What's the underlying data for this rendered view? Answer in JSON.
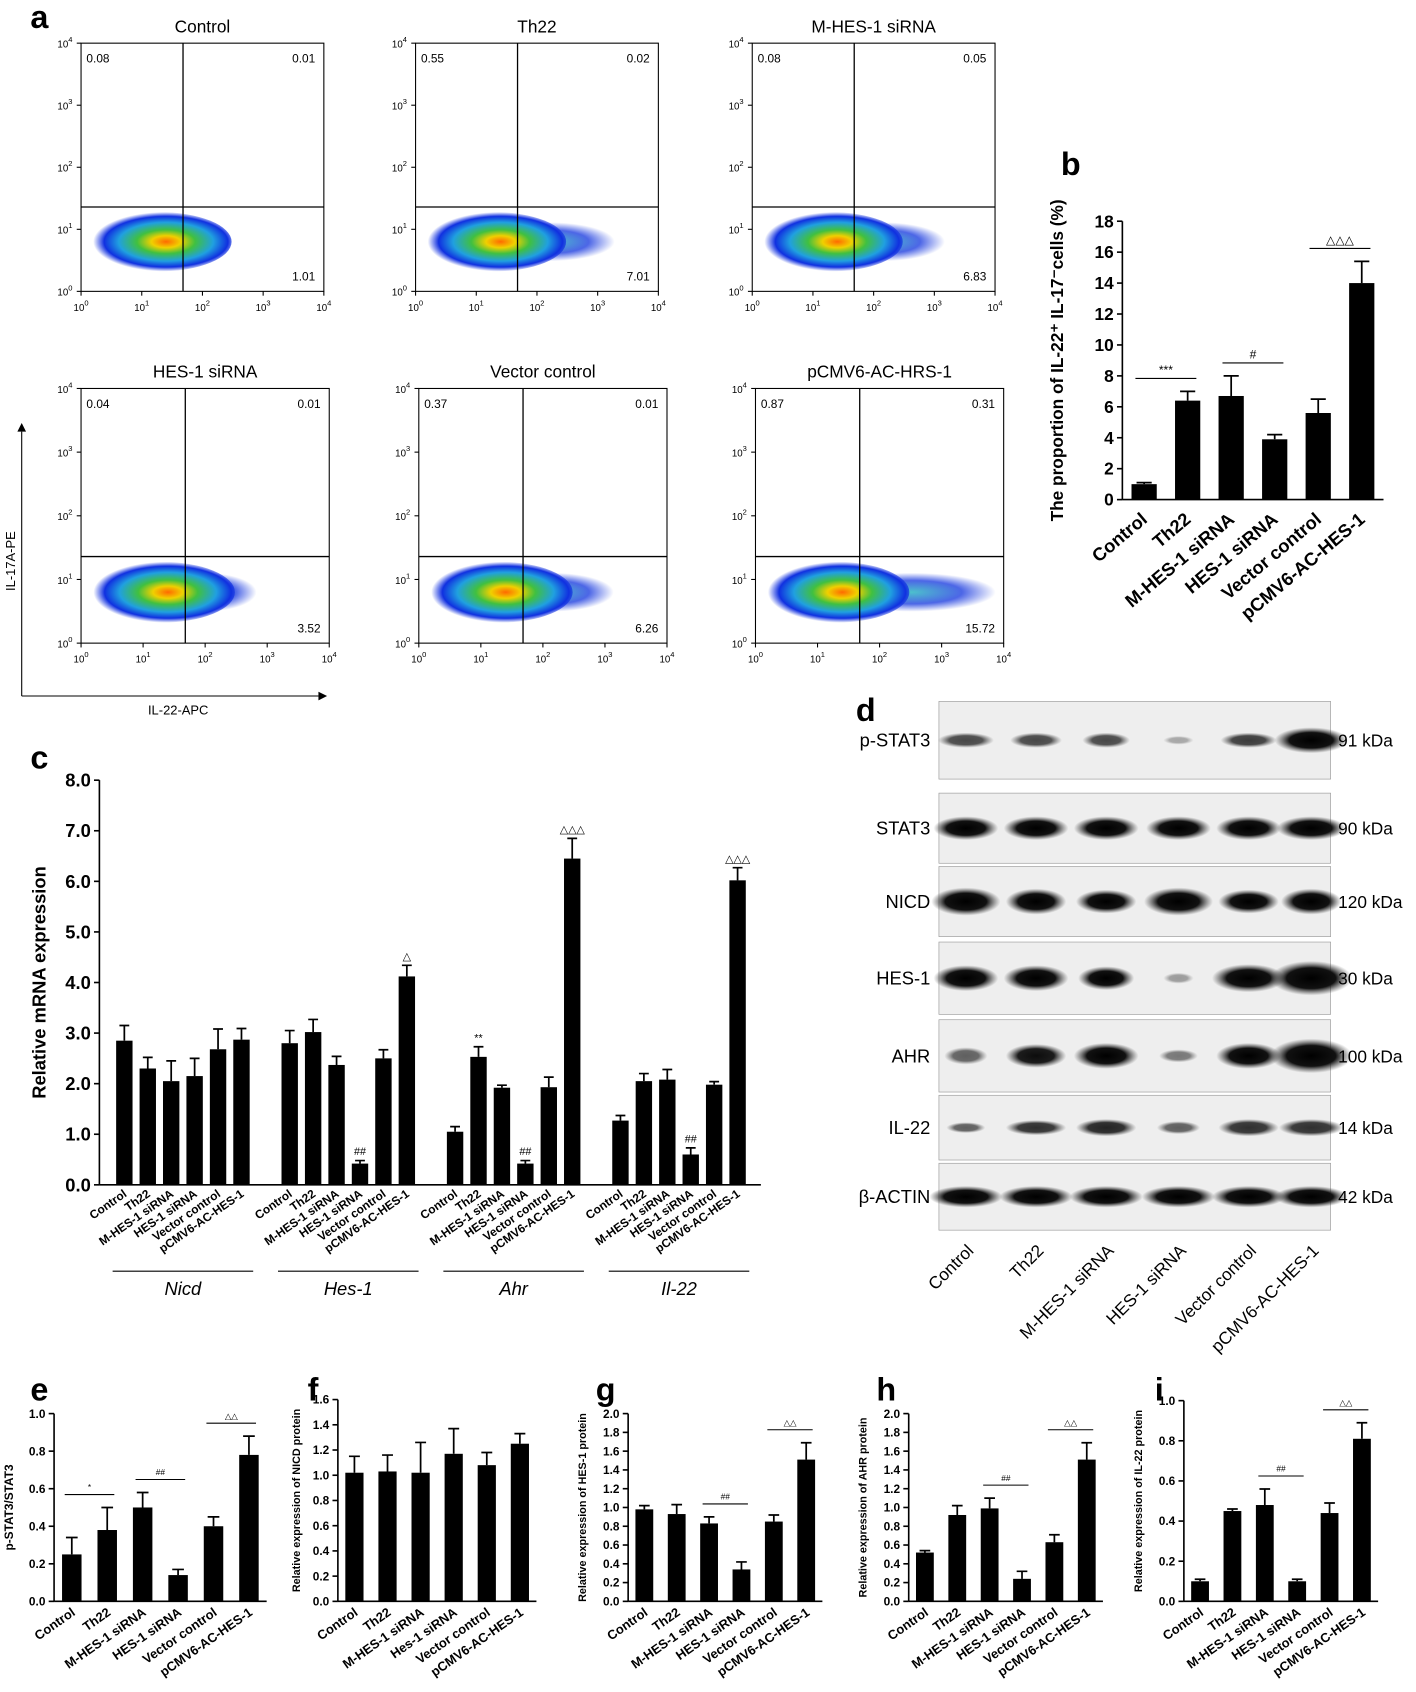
{
  "panel_a": {
    "label": "a",
    "x_axis_label": "IL-22-APC",
    "y_axis_label": "IL-17A-PE",
    "tick_base": "10",
    "log_ticks": [
      0,
      1,
      2,
      3,
      4
    ],
    "plots": [
      {
        "title": "Control",
        "upper_left": 0.08,
        "upper_right": 0.01,
        "lower_right": 1.01
      },
      {
        "title": "Th22",
        "upper_left": 0.55,
        "upper_right": 0.02,
        "lower_right": 7.01
      },
      {
        "title": "M-HES-1 siRNA",
        "upper_left": 0.08,
        "upper_right": 0.05,
        "lower_right": 6.83
      },
      {
        "title": "HES-1 siRNA",
        "upper_left": 0.04,
        "upper_right": 0.01,
        "lower_right": 3.52
      },
      {
        "title": "Vector control",
        "upper_left": 0.37,
        "upper_right": 0.01,
        "lower_right": 6.26
      },
      {
        "title": "pCMV6-AC-HRS-1",
        "upper_left": 0.87,
        "upper_right": 0.31,
        "lower_right": 15.72
      }
    ]
  },
  "chart_data": [
    {
      "type": "bar",
      "panel": "b",
      "y_label": "The proportion of IL-22⁺ IL-17⁻cells (%)",
      "categories": [
        "Control",
        "Th22",
        "M-HES-1 siRNA",
        "HES-1 siRNA",
        "Vector control",
        "pCMV6-AC-HES-1"
      ],
      "values": [
        1.0,
        6.4,
        6.7,
        3.9,
        5.6,
        14.0
      ],
      "errors": [
        0.1,
        0.6,
        1.3,
        0.3,
        0.9,
        1.4
      ],
      "color": "#000000",
      "ylim": [
        0,
        18
      ],
      "yticks": [
        0,
        2,
        4,
        6,
        8,
        10,
        12,
        14,
        16,
        18
      ],
      "brackets": [
        {
          "from": 0,
          "to": 1,
          "label": "***"
        },
        {
          "from": 2,
          "to": 3,
          "label": "#"
        },
        {
          "from": 4,
          "to": 5,
          "label": "△△△"
        }
      ]
    },
    {
      "type": "grouped_bar",
      "panel": "c",
      "y_label": "Relative mRNA expression",
      "categories": [
        "Control",
        "Th22",
        "M-HES-1 siRNA",
        "HES-1 siRNA",
        "Vector control",
        "pCMV6-AC-HES-1"
      ],
      "color": "#000000",
      "ylim": [
        0,
        8
      ],
      "yticks": [
        {
          "value": 0,
          "label": "0.0"
        },
        {
          "value": 1,
          "label": "1.0"
        },
        {
          "value": 2,
          "label": "2.0"
        },
        {
          "value": 3,
          "label": "3.0"
        },
        {
          "value": 4,
          "label": "4.0"
        },
        {
          "value": 5,
          "label": "5.0"
        },
        {
          "value": 6,
          "label": "6.0"
        },
        {
          "value": 7,
          "label": "7.0"
        },
        {
          "value": 8,
          "label": "8.0"
        }
      ],
      "groups": [
        {
          "name": "Nicd",
          "values": [
            2.85,
            2.3,
            2.05,
            2.15,
            2.68,
            2.87
          ],
          "errors": [
            0.3,
            0.22,
            0.4,
            0.35,
            0.4,
            0.22
          ],
          "markers": [
            null,
            null,
            null,
            null,
            null,
            null
          ]
        },
        {
          "name": "Hes-1",
          "values": [
            2.8,
            3.02,
            2.37,
            0.42,
            2.5,
            4.12
          ],
          "errors": [
            0.25,
            0.25,
            0.17,
            0.06,
            0.17,
            0.22
          ],
          "markers": [
            null,
            null,
            null,
            "##",
            null,
            "△"
          ]
        },
        {
          "name": "Ahr",
          "values": [
            1.05,
            2.53,
            1.92,
            0.42,
            1.93,
            6.45
          ],
          "errors": [
            0.1,
            0.2,
            0.05,
            0.06,
            0.2,
            0.4
          ],
          "markers": [
            null,
            "**",
            null,
            "##",
            null,
            "△△△"
          ]
        },
        {
          "name": "Il-22",
          "values": [
            1.27,
            2.05,
            2.08,
            0.6,
            1.98,
            6.02
          ],
          "errors": [
            0.1,
            0.15,
            0.2,
            0.13,
            0.06,
            0.25
          ],
          "markers": [
            null,
            null,
            null,
            "##",
            null,
            "△△△"
          ]
        }
      ]
    },
    {
      "type": "bar",
      "panel": "e",
      "y_label": "p-STAT3/STAT3",
      "categories": [
        "Control",
        "Th22",
        "M-HES-1 siRNA",
        "HES-1 siRNA",
        "Vector control",
        "pCMV6-AC-HES-1"
      ],
      "values": [
        0.25,
        0.38,
        0.5,
        0.14,
        0.4,
        0.78
      ],
      "errors": [
        0.09,
        0.12,
        0.08,
        0.03,
        0.05,
        0.1
      ],
      "color": "#000000",
      "ylim": [
        0,
        1
      ],
      "yticks": [
        {
          "value": 0,
          "label": "0.0"
        },
        0.2,
        0.4,
        0.6,
        0.8,
        {
          "value": 1,
          "label": "1.0"
        }
      ],
      "brackets": [
        {
          "from": 0,
          "to": 1,
          "label": "*"
        },
        {
          "from": 2,
          "to": 3,
          "label": "##"
        },
        {
          "from": 4,
          "to": 5,
          "label": "△△"
        }
      ]
    },
    {
      "type": "bar",
      "panel": "f",
      "y_label": "Relative expression of NICD protein",
      "categories": [
        "Control",
        "Th22",
        "M-HES-1 siRNA",
        "Hes-1 siRNA",
        "Vector control",
        "pCMV6-AC-HES-1"
      ],
      "values": [
        1.02,
        1.03,
        1.02,
        1.17,
        1.08,
        1.25
      ],
      "errors": [
        0.13,
        0.13,
        0.24,
        0.2,
        0.1,
        0.08
      ],
      "color": "#000000",
      "ylim": [
        0,
        1.6
      ],
      "yticks": [
        {
          "value": 0,
          "label": "0.0"
        },
        0.2,
        0.4,
        0.6,
        0.8,
        {
          "value": 1,
          "label": "1.0"
        },
        1.2,
        1.4,
        1.6
      ],
      "brackets": []
    },
    {
      "type": "bar",
      "panel": "g",
      "y_label": "Relative expression of HES-1 protein",
      "categories": [
        "Control",
        "Th22",
        "M-HES-1 siRNA",
        "HES-1 siRNA",
        "Vector control",
        "pCMV6-AC-HES-1"
      ],
      "values": [
        0.98,
        0.93,
        0.83,
        0.34,
        0.85,
        1.51
      ],
      "errors": [
        0.04,
        0.1,
        0.07,
        0.08,
        0.07,
        0.18
      ],
      "color": "#000000",
      "ylim": [
        0,
        2
      ],
      "yticks": [
        {
          "value": 0,
          "label": "0.0"
        },
        0.2,
        0.4,
        0.6,
        0.8,
        {
          "value": 1,
          "label": "1.0"
        },
        1.2,
        1.4,
        1.6,
        1.8,
        {
          "value": 2,
          "label": "2.0"
        }
      ],
      "brackets": [
        {
          "from": 2,
          "to": 3,
          "label": "##"
        },
        {
          "from": 4,
          "to": 5,
          "label": "△△"
        }
      ]
    },
    {
      "type": "bar",
      "panel": "h",
      "y_label": "Relative expression of AHR protein",
      "categories": [
        "Control",
        "Th22",
        "M-HES-1 siRNA",
        "HES-1 siRNA",
        "Vector control",
        "pCMV6-AC-HES-1"
      ],
      "values": [
        0.52,
        0.92,
        0.99,
        0.24,
        0.63,
        1.51
      ],
      "errors": [
        0.02,
        0.1,
        0.11,
        0.08,
        0.08,
        0.18
      ],
      "color": "#000000",
      "ylim": [
        0,
        2
      ],
      "yticks": [
        {
          "value": 0,
          "label": "0.0"
        },
        0.2,
        0.4,
        0.6,
        0.8,
        {
          "value": 1,
          "label": "1.0"
        },
        1.2,
        1.4,
        1.6,
        1.8,
        {
          "value": 2,
          "label": "2.0"
        }
      ],
      "brackets": [
        {
          "from": 2,
          "to": 3,
          "label": "##"
        },
        {
          "from": 4,
          "to": 5,
          "label": "△△"
        }
      ]
    },
    {
      "type": "bar",
      "panel": "i",
      "y_label": "Relative expression of IL-22 protein",
      "categories": [
        "Control",
        "Th22",
        "M-HES-1 siRNA",
        "HES-1 siRNA",
        "Vector control",
        "pCMV6-AC-HES-1"
      ],
      "values": [
        0.1,
        0.45,
        0.48,
        0.1,
        0.44,
        0.81
      ],
      "errors": [
        0.01,
        0.01,
        0.08,
        0.01,
        0.05,
        0.08
      ],
      "color": "#000000",
      "ylim": [
        0,
        1
      ],
      "yticks": [
        {
          "value": 0,
          "label": "0.0"
        },
        0.2,
        0.4,
        0.6,
        0.8,
        {
          "value": 1,
          "label": "1.0"
        }
      ],
      "brackets": [
        {
          "from": 2,
          "to": 3,
          "label": "##"
        },
        {
          "from": 4,
          "to": 5,
          "label": "△△"
        }
      ]
    }
  ],
  "panel_d": {
    "label": "d",
    "rows": [
      {
        "name": "p-STAT3",
        "size": "91 kDa"
      },
      {
        "name": "STAT3",
        "size": "90 kDa"
      },
      {
        "name": "NICD",
        "size": "120 kDa"
      },
      {
        "name": "HES-1",
        "size": "30 kDa"
      },
      {
        "name": "AHR",
        "size": "100 kDa"
      },
      {
        "name": "IL-22",
        "size": "14 kDa"
      },
      {
        "name": "β-ACTIN",
        "size": "42 kDa"
      }
    ],
    "lanes": [
      "Control",
      "Th22",
      "M-HES-1 siRNA",
      "HES-1 siRNA",
      "Vector control",
      "pCMV6-AC-HES-1"
    ]
  }
}
